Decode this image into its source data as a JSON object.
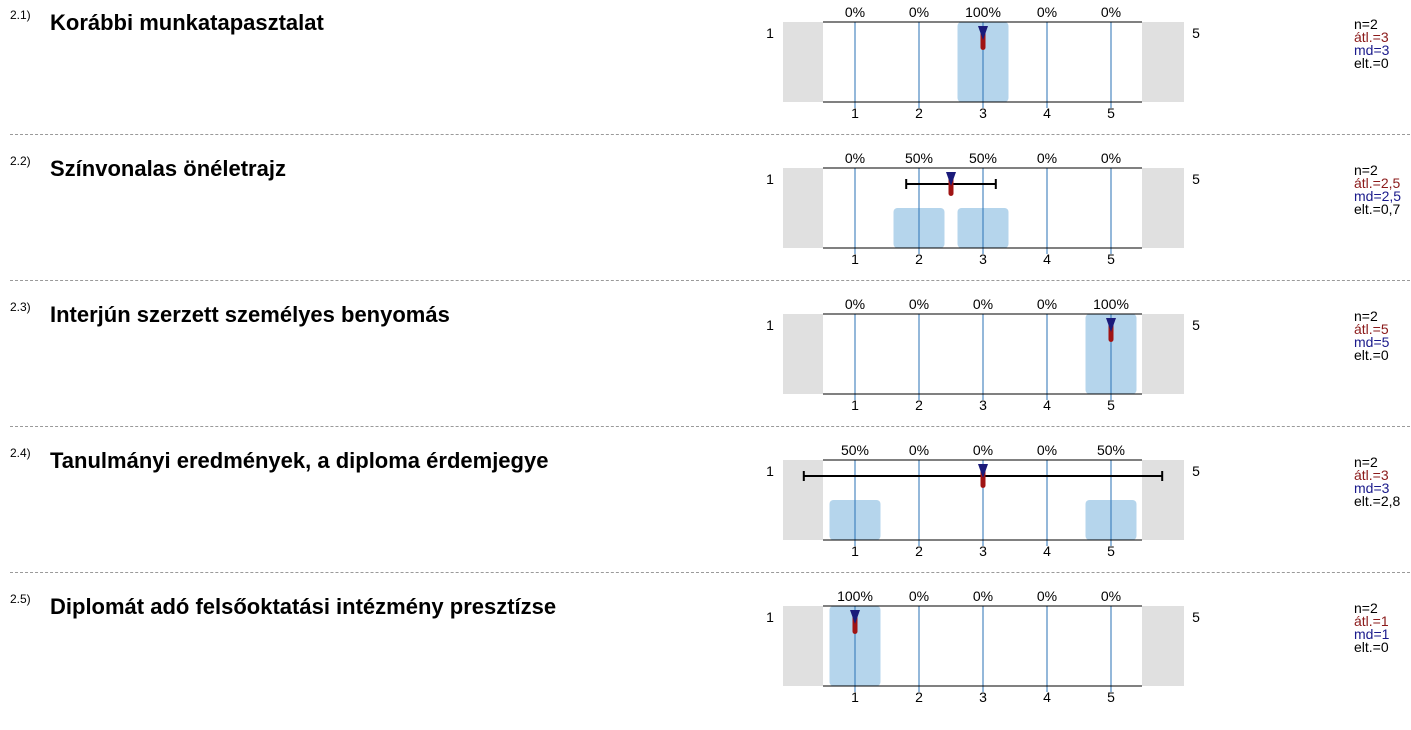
{
  "chart_data": [
    {
      "type": "bar",
      "number": "2.1)",
      "title": "Korábbi munkatapasztalat",
      "categories": [
        "1",
        "2",
        "3",
        "4",
        "5"
      ],
      "values": [
        0,
        0,
        100,
        0,
        0
      ],
      "percent_labels": [
        "0%",
        "0%",
        "100%",
        "0%",
        "0%"
      ],
      "scale_left": "1",
      "scale_right": "5",
      "mean": 3,
      "median": 3,
      "sd": 0,
      "stats": {
        "n": "n=2",
        "mean": "átl.=3",
        "md": "md=3",
        "sd": "elt.=0"
      }
    },
    {
      "type": "bar",
      "number": "2.2)",
      "title": "Színvonalas önéletrajz",
      "categories": [
        "1",
        "2",
        "3",
        "4",
        "5"
      ],
      "values": [
        0,
        50,
        50,
        0,
        0
      ],
      "percent_labels": [
        "0%",
        "50%",
        "50%",
        "0%",
        "0%"
      ],
      "scale_left": "1",
      "scale_right": "5",
      "mean": 2.5,
      "median": 2.5,
      "sd": 0.7,
      "stats": {
        "n": "n=2",
        "mean": "átl.=2,5",
        "md": "md=2,5",
        "sd": "elt.=0,7"
      }
    },
    {
      "type": "bar",
      "number": "2.3)",
      "title": "Interjún szerzett személyes benyomás",
      "categories": [
        "1",
        "2",
        "3",
        "4",
        "5"
      ],
      "values": [
        0,
        0,
        0,
        0,
        100
      ],
      "percent_labels": [
        "0%",
        "0%",
        "0%",
        "0%",
        "100%"
      ],
      "scale_left": "1",
      "scale_right": "5",
      "mean": 5,
      "median": 5,
      "sd": 0,
      "stats": {
        "n": "n=2",
        "mean": "átl.=5",
        "md": "md=5",
        "sd": "elt.=0"
      }
    },
    {
      "type": "bar",
      "number": "2.4)",
      "title": "Tanulmányi eredmények, a diploma érdemjegye",
      "categories": [
        "1",
        "2",
        "3",
        "4",
        "5"
      ],
      "values": [
        50,
        0,
        0,
        0,
        50
      ],
      "percent_labels": [
        "50%",
        "0%",
        "0%",
        "0%",
        "50%"
      ],
      "scale_left": "1",
      "scale_right": "5",
      "mean": 3,
      "median": 3,
      "sd": 2.8,
      "stats": {
        "n": "n=2",
        "mean": "átl.=3",
        "md": "md=3",
        "sd": "elt.=2,8"
      }
    },
    {
      "type": "bar",
      "number": "2.5)",
      "title": "Diplomát adó felsőoktatási intézmény presztízse",
      "categories": [
        "1",
        "2",
        "3",
        "4",
        "5"
      ],
      "values": [
        100,
        0,
        0,
        0,
        0
      ],
      "percent_labels": [
        "100%",
        "0%",
        "0%",
        "0%",
        "0%"
      ],
      "scale_left": "1",
      "scale_right": "5",
      "mean": 1,
      "median": 1,
      "sd": 0,
      "stats": {
        "n": "n=2",
        "mean": "átl.=1",
        "md": "md=1",
        "sd": "elt.=0"
      }
    }
  ],
  "colors": {
    "bar": "#b5d5ec",
    "gridline": "#2a72b6",
    "outside": "#e0e0e0",
    "median_marker": "#1a1a7a",
    "mean_marker": "#a01414",
    "sd_line": "#000000"
  }
}
